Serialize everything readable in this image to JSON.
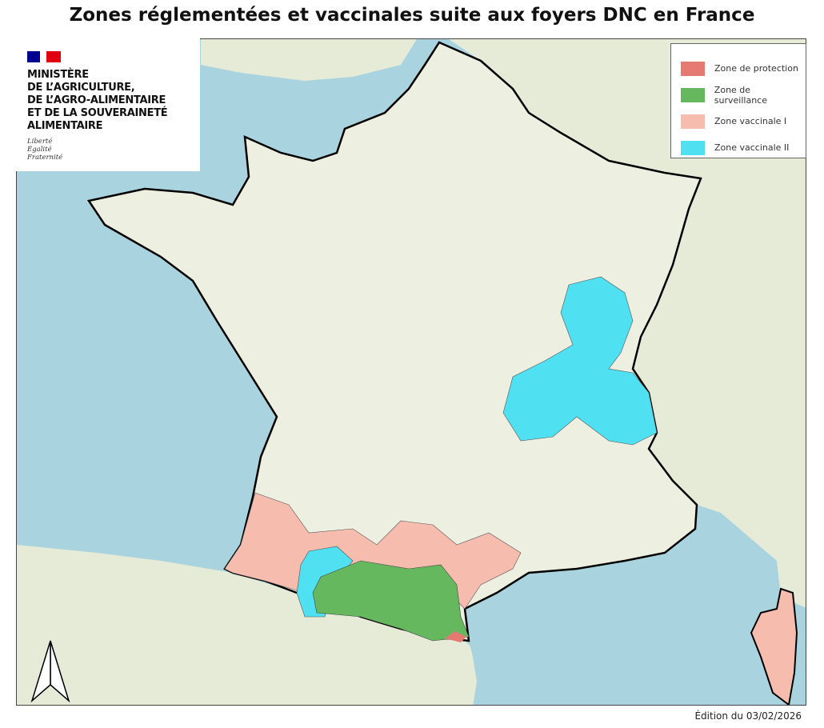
{
  "title": "Zones réglementées et vaccinales suite aux foyers DNC en France",
  "logo": {
    "ministry_lines": [
      "MINISTÈRE",
      "DE L’AGRICULTURE,",
      "DE L’AGRO-ALIMENTAIRE",
      "ET DE LA SOUVERAINETÉ",
      "ALIMENTAIRE"
    ],
    "motto": [
      "Liberté",
      "Égalité",
      "Fraternité"
    ],
    "flag_colors": [
      "#000091",
      "#ffffff",
      "#e1000f"
    ]
  },
  "legend": {
    "items": [
      {
        "label": "Zone de protection",
        "color": "#e57a72"
      },
      {
        "label": "Zone de surveillance",
        "color": "#66b85f"
      },
      {
        "label": "Zone vaccinale I",
        "color": "#f6bcae"
      },
      {
        "label": "Zone vaccinale II",
        "color": "#4fe0f2"
      }
    ]
  },
  "map": {
    "sea_color": "#a9d3df",
    "land_color": "#e6ebd8",
    "france_color": "#edf0e0",
    "north_arrow": "north-arrow-icon"
  },
  "footer": "Édition du 03/02/2026"
}
